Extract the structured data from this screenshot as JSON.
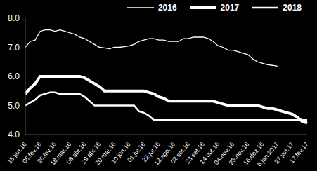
{
  "chart_data": {
    "type": "line",
    "categories": [
      "15.jan.16",
      null,
      null,
      "05.fev.16",
      null,
      null,
      "26.fev.16",
      null,
      null,
      "18.mar.16",
      null,
      null,
      "08.abr.16",
      null,
      null,
      "29.abr.16",
      null,
      null,
      "20.mai.16",
      null,
      null,
      "10.jun.16",
      null,
      null,
      "01.jul.16",
      null,
      null,
      "22.jul.16",
      null,
      null,
      "12.ago.16",
      null,
      null,
      "02.set.16",
      null,
      null,
      "23.set.16",
      null,
      null,
      "14.out.16",
      null,
      null,
      "04.nov.16",
      null,
      null,
      "25.nov.16",
      null,
      null,
      "16.dez.16",
      null,
      null,
      "6.jan.2017",
      null,
      null,
      "27.jan.17",
      null,
      null,
      "17.fev.17"
    ],
    "series": [
      {
        "name": "2016",
        "color": "#ffffff",
        "line_style": "thin",
        "values": [
          7.0,
          7.2,
          7.25,
          7.55,
          7.6,
          7.6,
          7.55,
          7.6,
          7.55,
          7.5,
          7.45,
          7.35,
          7.3,
          7.2,
          7.1,
          7.0,
          6.98,
          6.95,
          7.0,
          7.0,
          7.02,
          7.05,
          7.1,
          7.2,
          7.25,
          7.3,
          7.3,
          7.25,
          7.25,
          7.2,
          7.2,
          7.2,
          7.3,
          7.3,
          7.35,
          7.35,
          7.35,
          7.3,
          7.2,
          7.05,
          7.0,
          6.9,
          6.9,
          6.85,
          6.8,
          6.75,
          6.6,
          6.5,
          6.45,
          6.4,
          6.38,
          6.35,
          null,
          null,
          null,
          null,
          null,
          null
        ]
      },
      {
        "name": "2017",
        "color": "#ffffff",
        "line_style": "thick",
        "values": [
          5.4,
          5.6,
          5.75,
          6.0,
          6.0,
          6.0,
          6.0,
          6.0,
          6.0,
          6.0,
          6.0,
          6.0,
          5.95,
          5.85,
          5.75,
          5.65,
          5.5,
          5.5,
          5.5,
          5.5,
          5.5,
          5.5,
          5.5,
          5.5,
          5.5,
          5.45,
          5.4,
          5.3,
          5.25,
          5.15,
          5.15,
          5.15,
          5.15,
          5.15,
          5.15,
          5.15,
          5.15,
          5.15,
          5.15,
          5.1,
          5.05,
          5.0,
          5.0,
          5.0,
          5.0,
          5.0,
          5.0,
          5.0,
          4.95,
          4.9,
          4.9,
          4.85,
          4.8,
          4.75,
          4.7,
          4.6,
          4.45,
          4.4
        ]
      },
      {
        "name": "2018",
        "color": "#ffffff",
        "line_style": "medium",
        "values": [
          5.0,
          5.1,
          5.2,
          5.35,
          5.4,
          5.45,
          5.45,
          5.4,
          5.4,
          5.4,
          5.4,
          5.4,
          5.3,
          5.15,
          5.0,
          5.0,
          5.0,
          5.0,
          5.0,
          5.0,
          5.0,
          5.0,
          5.0,
          4.8,
          4.75,
          4.65,
          4.5,
          4.5,
          4.5,
          4.5,
          4.5,
          4.5,
          4.5,
          4.5,
          4.5,
          4.5,
          4.5,
          4.5,
          4.5,
          4.5,
          4.5,
          4.5,
          4.5,
          4.5,
          4.5,
          4.5,
          4.5,
          4.5,
          4.5,
          4.5,
          4.5,
          4.5,
          4.5,
          4.5,
          4.5,
          4.5,
          4.5,
          4.5
        ]
      }
    ],
    "ylim": [
      4.0,
      8.0
    ],
    "yticks": [
      {
        "value": 4.0,
        "label": "4.0"
      },
      {
        "value": 5.0,
        "label": "5.0"
      },
      {
        "value": 6.0,
        "label": "6.0"
      },
      {
        "value": 7.0,
        "label": "7.0"
      },
      {
        "value": 8.0,
        "label": "8.0"
      }
    ],
    "grid": false,
    "legend": "top"
  }
}
